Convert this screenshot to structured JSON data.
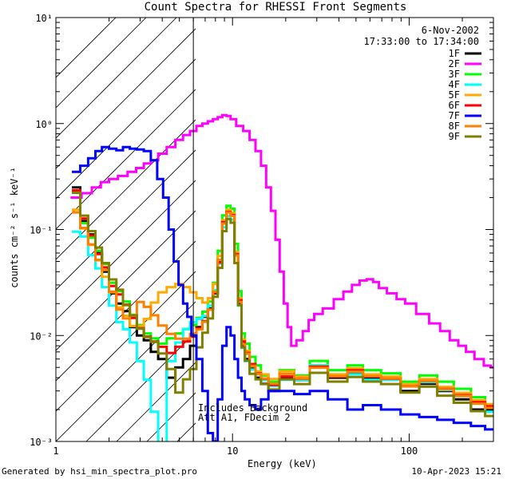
{
  "chart_data": {
    "type": "line",
    "title": "Count Spectra for RHESSI Front Segments",
    "xlabel": "Energy (keV)",
    "ylabel": "counts cm⁻² s⁻¹ keV⁻¹",
    "xscale": "log",
    "yscale": "log",
    "xlim": [
      1,
      300
    ],
    "ylim": [
      0.001,
      10
    ],
    "x_ticks": [
      "1",
      "10",
      "100"
    ],
    "y_ticks": [
      "10⁻³",
      "10⁻²",
      "10⁻¹",
      "10⁰",
      "10¹"
    ],
    "date": "6-Nov-2002",
    "time_range": "17:33:00 to 17:34:00",
    "hatched_region_keV": [
      1,
      6
    ],
    "attenuator_note_line1": "Includes Background",
    "attenuator_note_line2": "Att A1, FDecim 2",
    "footer_left": "Generated by hsi_min_spectra_plot.pro",
    "footer_right": "10-Apr-2023 15:21",
    "series": [
      {
        "name": "1F",
        "color": "#000000",
        "shift": 0.0,
        "x": [
          1.3,
          1.45,
          1.6,
          1.75,
          1.9,
          2.1,
          2.3,
          2.5,
          2.75,
          3.0,
          3.3,
          3.6,
          4.0,
          4.5,
          5.0,
          5.5,
          6.0,
          6.5,
          7.0,
          7.5,
          8.0,
          8.5,
          9.0,
          9.5,
          10.0,
          10.5,
          11.0,
          11.5,
          12.0,
          13.0,
          14.0,
          15.0,
          17.0,
          20.0,
          25.0,
          30.0,
          40.0,
          50.0,
          60.0,
          80.0,
          100.0,
          130.0,
          160.0,
          200.0,
          250.0,
          290.0
        ],
        "y": [
          0.25,
          0.12,
          0.09,
          0.06,
          0.04,
          0.025,
          0.02,
          0.017,
          0.012,
          0.01,
          0.009,
          0.007,
          0.006,
          0.004,
          0.005,
          0.006,
          0.008,
          0.012,
          0.015,
          0.018,
          0.025,
          0.05,
          0.12,
          0.15,
          0.14,
          0.06,
          0.02,
          0.008,
          0.006,
          0.005,
          0.004,
          0.0035,
          0.003,
          0.004,
          0.0038,
          0.005,
          0.004,
          0.0045,
          0.004,
          0.004,
          0.003,
          0.0035,
          0.003,
          0.0025,
          0.002,
          0.002
        ]
      },
      {
        "name": "2F",
        "color": "#ff00ff",
        "shift": 0.0,
        "x": [
          1.3,
          1.5,
          1.7,
          1.9,
          2.1,
          2.4,
          2.7,
          3.0,
          3.3,
          3.6,
          4.0,
          4.5,
          5.0,
          5.5,
          6.0,
          6.5,
          7.0,
          7.5,
          8.0,
          8.5,
          9.0,
          9.5,
          10.0,
          11.0,
          12.0,
          13.0,
          14.0,
          15.0,
          16.0,
          17.0,
          18.0,
          19.0,
          20.0,
          21.0,
          22.0,
          24.0,
          26.0,
          28.0,
          30.0,
          35.0,
          40.0,
          45.0,
          50.0,
          55.0,
          60.0,
          65.0,
          70.0,
          80.0,
          90.0,
          100.0,
          120.0,
          140.0,
          160.0,
          180.0,
          200.0,
          220.0,
          250.0,
          280.0,
          300.0
        ],
        "y": [
          0.2,
          0.22,
          0.25,
          0.28,
          0.3,
          0.32,
          0.35,
          0.38,
          0.42,
          0.45,
          0.52,
          0.6,
          0.7,
          0.78,
          0.85,
          0.95,
          1.0,
          1.05,
          1.1,
          1.15,
          1.2,
          1.18,
          1.1,
          0.95,
          0.85,
          0.7,
          0.55,
          0.4,
          0.25,
          0.15,
          0.08,
          0.04,
          0.02,
          0.012,
          0.008,
          0.009,
          0.011,
          0.014,
          0.016,
          0.018,
          0.022,
          0.026,
          0.03,
          0.033,
          0.034,
          0.032,
          0.028,
          0.025,
          0.022,
          0.02,
          0.016,
          0.013,
          0.011,
          0.009,
          0.008,
          0.007,
          0.006,
          0.0052,
          0.005
        ]
      },
      {
        "name": "3F",
        "color": "#00ff00",
        "shift": 0.02,
        "x": [
          1.3,
          1.45,
          1.6,
          1.75,
          1.9,
          2.1,
          2.3,
          2.5,
          2.75,
          3.0,
          3.3,
          3.6,
          4.0,
          4.5,
          5.0,
          5.5,
          6.0,
          6.5,
          7.0,
          7.5,
          8.0,
          8.5,
          9.0,
          9.5,
          10.0,
          10.5,
          11.0,
          11.5,
          12.0,
          13.0,
          14.0,
          15.0,
          17.0,
          20.0,
          25.0,
          30.0,
          40.0,
          50.0,
          60.0,
          80.0,
          100.0,
          130.0,
          160.0,
          200.0,
          250.0,
          290.0
        ],
        "y": [
          0.22,
          0.11,
          0.08,
          0.06,
          0.045,
          0.03,
          0.025,
          0.02,
          0.015,
          0.012,
          0.01,
          0.009,
          0.008,
          0.009,
          0.01,
          0.011,
          0.012,
          0.014,
          0.016,
          0.02,
          0.03,
          0.06,
          0.13,
          0.16,
          0.15,
          0.07,
          0.025,
          0.01,
          0.008,
          0.006,
          0.005,
          0.004,
          0.0035,
          0.0045,
          0.004,
          0.0055,
          0.0045,
          0.005,
          0.0045,
          0.0042,
          0.0035,
          0.004,
          0.0035,
          0.003,
          0.0025,
          0.002
        ]
      },
      {
        "name": "4F",
        "color": "#00ffff",
        "shift": -0.02,
        "x": [
          1.3,
          1.45,
          1.6,
          1.75,
          1.9,
          2.1,
          2.3,
          2.5,
          2.75,
          3.0,
          3.3,
          3.6,
          4.0,
          4.5,
          5.0,
          5.5,
          6.0,
          6.5,
          7.0,
          7.5,
          8.0,
          8.5,
          9.0,
          9.5,
          10.0,
          10.5,
          11.0,
          11.5,
          12.0,
          13.0,
          14.0,
          15.0,
          17.0,
          20.0,
          25.0,
          30.0,
          40.0,
          50.0,
          60.0,
          80.0,
          100.0,
          130.0,
          160.0,
          200.0,
          250.0,
          290.0
        ],
        "y": [
          0.1,
          0.09,
          0.06,
          0.045,
          0.03,
          0.02,
          0.014,
          0.012,
          0.009,
          0.006,
          0.004,
          0.002,
          0.001,
          0.006,
          0.009,
          0.012,
          0.014,
          0.015,
          0.016,
          0.02,
          0.028,
          0.05,
          0.11,
          0.14,
          0.13,
          0.06,
          0.02,
          0.008,
          0.006,
          0.005,
          0.0045,
          0.004,
          0.0035,
          0.004,
          0.004,
          0.0055,
          0.0045,
          0.0045,
          0.004,
          0.004,
          0.0035,
          0.0038,
          0.0032,
          0.0028,
          0.0025,
          0.002
        ]
      },
      {
        "name": "5F",
        "color": "#ffaa00",
        "shift": 0.01,
        "x": [
          1.3,
          1.45,
          1.6,
          1.75,
          1.9,
          2.1,
          2.3,
          2.5,
          2.75,
          3.0,
          3.3,
          3.6,
          4.0,
          4.5,
          5.0,
          5.5,
          6.0,
          6.5,
          7.0,
          7.5,
          8.0,
          8.5,
          9.0,
          9.5,
          10.0,
          10.5,
          11.0,
          11.5,
          12.0,
          13.0,
          14.0,
          15.0,
          17.0,
          20.0,
          25.0,
          30.0,
          40.0,
          50.0,
          60.0,
          80.0,
          100.0,
          130.0,
          160.0,
          200.0,
          250.0,
          290.0
        ],
        "y": [
          0.15,
          0.1,
          0.07,
          0.05,
          0.035,
          0.025,
          0.018,
          0.015,
          0.012,
          0.012,
          0.014,
          0.02,
          0.025,
          0.028,
          0.03,
          0.028,
          0.025,
          0.022,
          0.02,
          0.022,
          0.03,
          0.055,
          0.12,
          0.15,
          0.14,
          0.06,
          0.022,
          0.009,
          0.007,
          0.005,
          0.0045,
          0.0042,
          0.0038,
          0.0045,
          0.004,
          0.005,
          0.0042,
          0.0048,
          0.0042,
          0.004,
          0.0034,
          0.0038,
          0.0032,
          0.0028,
          0.0024,
          0.0022
        ]
      },
      {
        "name": "6F",
        "color": "#ff0000",
        "shift": -0.01,
        "x": [
          1.3,
          1.45,
          1.6,
          1.75,
          1.9,
          2.1,
          2.3,
          2.5,
          2.75,
          3.0,
          3.3,
          3.6,
          4.0,
          4.5,
          5.0,
          5.5,
          6.0,
          6.5,
          7.0,
          7.5,
          8.0,
          8.5,
          9.0,
          9.5,
          10.0,
          10.5,
          11.0,
          11.5,
          12.0,
          13.0,
          14.0,
          15.0,
          17.0,
          20.0,
          25.0,
          30.0,
          40.0,
          50.0,
          60.0,
          80.0,
          100.0,
          130.0,
          160.0,
          200.0,
          250.0,
          290.0
        ],
        "y": [
          0.24,
          0.13,
          0.09,
          0.06,
          0.045,
          0.03,
          0.025,
          0.02,
          0.015,
          0.012,
          0.01,
          0.009,
          0.008,
          0.007,
          0.008,
          0.009,
          0.01,
          0.012,
          0.014,
          0.018,
          0.026,
          0.05,
          0.12,
          0.15,
          0.14,
          0.06,
          0.022,
          0.009,
          0.007,
          0.0055,
          0.0045,
          0.004,
          0.0035,
          0.0042,
          0.004,
          0.0052,
          0.0042,
          0.0048,
          0.0042,
          0.004,
          0.0034,
          0.0038,
          0.0032,
          0.0028,
          0.0024,
          0.0022
        ]
      },
      {
        "name": "7F",
        "color": "#0000ff",
        "shift": 0.0,
        "x": [
          1.3,
          1.45,
          1.6,
          1.75,
          1.9,
          2.1,
          2.3,
          2.5,
          2.75,
          3.0,
          3.3,
          3.6,
          3.9,
          4.2,
          4.5,
          4.8,
          5.1,
          5.4,
          5.7,
          6.0,
          6.5,
          7.0,
          7.5,
          8.0,
          8.5,
          9.0,
          9.5,
          10.0,
          10.5,
          11.0,
          11.5,
          12.0,
          13.0,
          14.0,
          15.0,
          17.0,
          20.0,
          25.0,
          30.0,
          40.0,
          50.0,
          60.0,
          80.0,
          100.0,
          130.0,
          160.0,
          200.0,
          250.0,
          290.0
        ],
        "y": [
          0.35,
          0.4,
          0.47,
          0.55,
          0.6,
          0.58,
          0.56,
          0.6,
          0.58,
          0.57,
          0.55,
          0.45,
          0.3,
          0.2,
          0.1,
          0.05,
          0.03,
          0.02,
          0.015,
          0.01,
          0.006,
          0.003,
          0.0012,
          0.001,
          0.0025,
          0.008,
          0.012,
          0.01,
          0.006,
          0.004,
          0.003,
          0.0025,
          0.0022,
          0.002,
          0.0025,
          0.003,
          0.003,
          0.0028,
          0.003,
          0.0025,
          0.002,
          0.0022,
          0.002,
          0.0018,
          0.0017,
          0.0016,
          0.0015,
          0.0014,
          0.0013
        ]
      },
      {
        "name": "8F",
        "color": "#ff7f00",
        "shift": 0.015,
        "x": [
          1.3,
          1.45,
          1.6,
          1.75,
          1.9,
          2.1,
          2.3,
          2.5,
          2.75,
          3.0,
          3.3,
          3.6,
          4.0,
          4.5,
          5.0,
          5.5,
          6.0,
          6.5,
          7.0,
          7.5,
          8.0,
          8.5,
          9.0,
          9.5,
          10.0,
          10.5,
          11.0,
          11.5,
          12.0,
          13.0,
          14.0,
          15.0,
          17.0,
          20.0,
          25.0,
          30.0,
          40.0,
          50.0,
          60.0,
          80.0,
          100.0,
          130.0,
          160.0,
          200.0,
          250.0,
          290.0
        ],
        "y": [
          0.14,
          0.1,
          0.07,
          0.05,
          0.04,
          0.025,
          0.017,
          0.014,
          0.015,
          0.02,
          0.018,
          0.015,
          0.012,
          0.01,
          0.009,
          0.009,
          0.01,
          0.011,
          0.013,
          0.017,
          0.025,
          0.05,
          0.11,
          0.14,
          0.13,
          0.055,
          0.02,
          0.008,
          0.0065,
          0.005,
          0.0042,
          0.0038,
          0.0034,
          0.0042,
          0.0038,
          0.0048,
          0.004,
          0.0044,
          0.004,
          0.0038,
          0.0032,
          0.0036,
          0.003,
          0.0026,
          0.0022,
          0.002
        ]
      },
      {
        "name": "9F",
        "color": "#808000",
        "shift": -0.015,
        "x": [
          1.3,
          1.45,
          1.6,
          1.75,
          1.9,
          2.1,
          2.3,
          2.5,
          2.75,
          3.0,
          3.3,
          3.6,
          4.0,
          4.5,
          5.0,
          5.5,
          6.0,
          6.5,
          7.0,
          7.5,
          8.0,
          8.5,
          9.0,
          9.5,
          10.0,
          10.5,
          11.0,
          11.5,
          12.0,
          13.0,
          14.0,
          15.0,
          17.0,
          20.0,
          25.0,
          30.0,
          40.0,
          50.0,
          60.0,
          80.0,
          100.0,
          130.0,
          160.0,
          200.0,
          250.0,
          290.0
        ],
        "y": [
          0.23,
          0.14,
          0.1,
          0.07,
          0.05,
          0.035,
          0.028,
          0.02,
          0.016,
          0.012,
          0.01,
          0.009,
          0.007,
          0.005,
          0.003,
          0.004,
          0.005,
          0.008,
          0.011,
          0.015,
          0.024,
          0.045,
          0.1,
          0.13,
          0.12,
          0.05,
          0.02,
          0.008,
          0.006,
          0.0045,
          0.004,
          0.0036,
          0.0032,
          0.004,
          0.0036,
          0.0046,
          0.0038,
          0.0042,
          0.0038,
          0.0036,
          0.003,
          0.0034,
          0.0028,
          0.0024,
          0.002,
          0.0018
        ]
      }
    ]
  }
}
